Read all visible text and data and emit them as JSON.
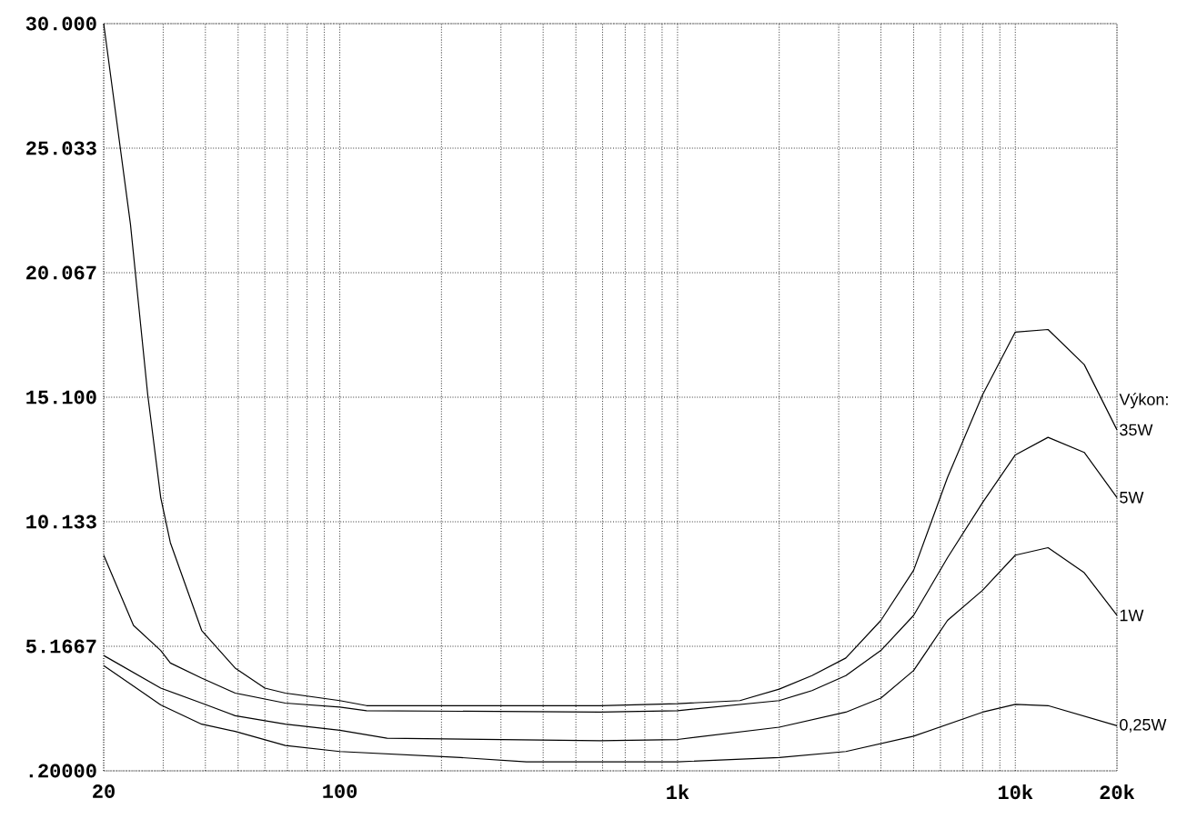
{
  "chart_data": {
    "type": "line",
    "legend_title": "Výkon:",
    "log": "x",
    "grid": true,
    "legend": false,
    "marker": "none",
    "line_style": "solid",
    "xlim": [
      20,
      20000
    ],
    "ylim": [
      0.2,
      30
    ],
    "xticks": [
      20,
      100,
      {
        "value": 1000,
        "label": "1k"
      },
      {
        "value": 10000,
        "label": "10k"
      },
      {
        "value": 20000,
        "label": "20k"
      }
    ],
    "yticks": [
      {
        "value": 0.2,
        "label": ".20000"
      },
      5.1667,
      10.133,
      {
        "value": 15.1,
        "label": "15.100"
      },
      20.067,
      25.033,
      {
        "value": 30,
        "label": "30.000"
      }
    ],
    "series": [
      {
        "name": "35W",
        "color": "#000000",
        "x": [
          20,
          24,
          27,
          29.5,
          31.5,
          39,
          49,
          60,
          69,
          100,
          120,
          590,
          1000,
          1530,
          2000,
          2500,
          3150,
          4000,
          5000,
          6300,
          8000,
          10000,
          12500,
          16000,
          20000
        ],
        "values": [
          30.0,
          22,
          15.2,
          11.1,
          9.3,
          5.8,
          4.3,
          3.5,
          3.3,
          3.0,
          2.8,
          2.8,
          2.88,
          3.0,
          3.46,
          4.0,
          4.7,
          6.2,
          8.2,
          11.9,
          15.2,
          17.7,
          17.8,
          16.4,
          13.8
        ]
      },
      {
        "name": "5W",
        "color": "#000000",
        "x": [
          20,
          24.5,
          29.5,
          31.5,
          39,
          49,
          69,
          100,
          120,
          590,
          1000,
          2000,
          2500,
          3150,
          4000,
          5000,
          6300,
          8000,
          10000,
          12500,
          16000,
          20000
        ],
        "values": [
          8.8,
          6.0,
          5.0,
          4.5,
          3.9,
          3.3,
          2.9,
          2.74,
          2.6,
          2.54,
          2.6,
          3.0,
          3.4,
          4.0,
          5.0,
          6.4,
          8.7,
          10.9,
          12.8,
          13.5,
          12.9,
          11.1
        ]
      },
      {
        "name": "1W",
        "color": "#000000",
        "x": [
          20,
          29.5,
          39,
          49,
          69,
          100,
          138,
          590,
          1000,
          2000,
          3150,
          4000,
          5000,
          6300,
          8000,
          10000,
          12500,
          16000,
          20000
        ],
        "values": [
          4.8,
          3.5,
          2.9,
          2.4,
          2.06,
          1.82,
          1.5,
          1.4,
          1.45,
          1.94,
          2.54,
          3.1,
          4.2,
          6.2,
          7.4,
          8.8,
          9.1,
          8.1,
          6.4
        ]
      },
      {
        "name": "0,25W",
        "color": "#000000",
        "x": [
          20,
          29.5,
          39,
          49,
          69,
          100,
          228,
          357,
          590,
          1000,
          2000,
          3150,
          5000,
          8000,
          10000,
          12500,
          20000
        ],
        "values": [
          4.4,
          2.83,
          2.06,
          1.77,
          1.21,
          0.97,
          0.73,
          0.56,
          0.56,
          0.56,
          0.73,
          0.97,
          1.58,
          2.54,
          2.85,
          2.8,
          2.0
        ]
      }
    ]
  }
}
